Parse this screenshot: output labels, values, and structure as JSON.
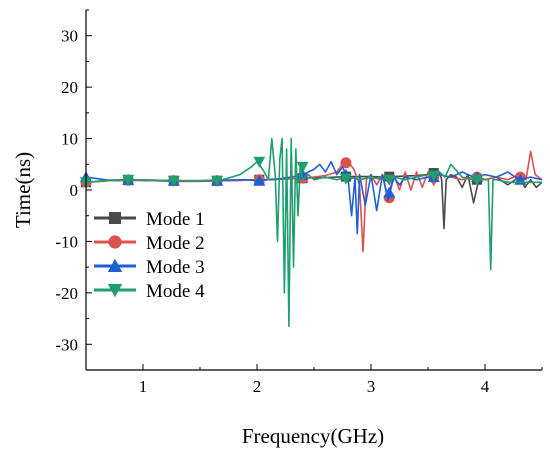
{
  "chart_data": {
    "type": "line",
    "title": "",
    "xlabel": "Frequency(GHz)",
    "ylabel": "Time(ns)",
    "xlim": [
      0.5,
      4.5
    ],
    "ylim": [
      -35,
      35
    ],
    "xticks": [
      1,
      2,
      3,
      4
    ],
    "yticks": [
      -30,
      -20,
      -10,
      0,
      10,
      20,
      30
    ],
    "grid": false,
    "legend_position": "bottom-left",
    "series": [
      {
        "name": "Mode 1",
        "color": "#4a4a4a",
        "marker": "square",
        "x": [
          0.5,
          0.7,
          0.9,
          1.1,
          1.3,
          1.5,
          1.7,
          1.9,
          2.0,
          2.1,
          2.2,
          2.3,
          2.4,
          2.5,
          2.6,
          2.7,
          2.8,
          2.9,
          3.0,
          3.1,
          3.2,
          3.3,
          3.4,
          3.5,
          3.55,
          3.6,
          3.62,
          3.64,
          3.66,
          3.7,
          3.75,
          3.8,
          3.85,
          3.9,
          3.95,
          4.0,
          4.1,
          4.2,
          4.3,
          4.35,
          4.4,
          4.45,
          4.5
        ],
        "y": [
          1.5,
          1.8,
          1.9,
          1.8,
          1.7,
          1.7,
          1.8,
          1.9,
          2.0,
          2.0,
          2.1,
          2.2,
          2.3,
          2.4,
          2.4,
          2.5,
          2.6,
          2.6,
          2.6,
          2.5,
          2.6,
          2.7,
          2.8,
          3.0,
          3.2,
          3.5,
          2.0,
          -7.5,
          2.0,
          3.0,
          2.5,
          0.5,
          3.0,
          -2.5,
          2.5,
          2.0,
          2.5,
          1.0,
          2.5,
          0.5,
          2.0,
          0.5,
          1.5
        ],
        "marker_x": [
          0.5,
          0.87,
          1.27,
          1.65,
          2.02,
          2.4,
          2.78,
          3.16,
          3.55,
          3.93
        ],
        "marker_y": [
          1.5,
          1.9,
          1.8,
          1.8,
          2.0,
          2.3,
          2.6,
          2.6,
          3.3,
          2.0
        ]
      },
      {
        "name": "Mode 2",
        "color": "#d9534f",
        "marker": "circle",
        "x": [
          0.5,
          0.7,
          0.9,
          1.1,
          1.3,
          1.5,
          1.7,
          1.9,
          2.0,
          2.1,
          2.2,
          2.3,
          2.4,
          2.5,
          2.6,
          2.7,
          2.75,
          2.8,
          2.85,
          2.9,
          2.93,
          2.96,
          3.0,
          3.05,
          3.1,
          3.15,
          3.2,
          3.25,
          3.3,
          3.35,
          3.4,
          3.45,
          3.5,
          3.55,
          3.6,
          3.7,
          3.8,
          3.9,
          4.0,
          4.1,
          4.2,
          4.3,
          4.36,
          4.4,
          4.44,
          4.5
        ],
        "y": [
          1.5,
          1.8,
          1.9,
          1.8,
          1.7,
          1.7,
          1.8,
          1.9,
          2.0,
          2.0,
          2.1,
          2.2,
          2.3,
          2.5,
          2.8,
          3.5,
          5.0,
          5.5,
          4.0,
          1.0,
          -12.0,
          2.0,
          3.0,
          1.0,
          3.0,
          -1.5,
          3.0,
          0.0,
          3.5,
          0.0,
          3.5,
          0.5,
          3.5,
          1.0,
          3.0,
          2.5,
          2.0,
          2.5,
          2.0,
          2.5,
          2.0,
          3.0,
          2.0,
          7.5,
          3.0,
          2.0
        ],
        "marker_x": [
          0.5,
          0.87,
          1.27,
          1.65,
          2.02,
          2.4,
          2.78,
          3.16,
          3.55,
          3.93,
          4.31
        ],
        "marker_y": [
          1.5,
          1.9,
          1.8,
          1.8,
          2.0,
          2.3,
          5.3,
          -1.5,
          2.5,
          2.5,
          2.5
        ]
      },
      {
        "name": "Mode 3",
        "color": "#1f5fd6",
        "marker": "triangle-up",
        "x": [
          0.5,
          0.7,
          0.9,
          1.1,
          1.3,
          1.5,
          1.7,
          1.9,
          2.0,
          2.1,
          2.2,
          2.3,
          2.4,
          2.5,
          2.55,
          2.6,
          2.65,
          2.7,
          2.75,
          2.8,
          2.83,
          2.86,
          2.88,
          2.9,
          2.95,
          3.0,
          3.05,
          3.1,
          3.15,
          3.2,
          3.25,
          3.3,
          3.4,
          3.5,
          3.6,
          3.7,
          3.8,
          3.9,
          4.0,
          4.1,
          4.2,
          4.3,
          4.4,
          4.5
        ],
        "y": [
          2.5,
          1.9,
          2.0,
          1.9,
          1.8,
          1.8,
          1.9,
          2.0,
          1.8,
          2.0,
          2.2,
          2.5,
          3.0,
          4.0,
          5.0,
          3.5,
          5.5,
          3.0,
          4.5,
          2.0,
          -5.0,
          2.5,
          -8.5,
          3.0,
          -3.0,
          3.0,
          -4.0,
          3.0,
          -2.0,
          2.5,
          1.0,
          2.5,
          2.0,
          2.5,
          3.0,
          2.5,
          3.5,
          2.5,
          3.0,
          2.5,
          3.5,
          2.0,
          2.5,
          2.0
        ],
        "marker_x": [
          0.5,
          0.87,
          1.27,
          1.65,
          2.02,
          2.4,
          2.78,
          3.16,
          3.55,
          3.93,
          4.31
        ],
        "marker_y": [
          2.5,
          2.0,
          1.8,
          1.8,
          1.8,
          3.0,
          3.0,
          -0.5,
          2.5,
          2.5,
          2.0
        ]
      },
      {
        "name": "Mode 4",
        "color": "#1f9e6e",
        "marker": "triangle-down",
        "x": [
          0.5,
          0.7,
          0.9,
          1.1,
          1.3,
          1.5,
          1.7,
          1.85,
          1.95,
          2.0,
          2.05,
          2.1,
          2.13,
          2.16,
          2.18,
          2.2,
          2.22,
          2.24,
          2.26,
          2.28,
          2.3,
          2.32,
          2.34,
          2.36,
          2.38,
          2.4,
          2.45,
          2.5,
          2.6,
          2.7,
          2.8,
          2.9,
          3.0,
          3.1,
          3.2,
          3.3,
          3.4,
          3.5,
          3.6,
          3.65,
          3.7,
          3.8,
          3.9,
          4.0,
          4.03,
          4.05,
          4.07,
          4.1,
          4.2,
          4.3,
          4.4,
          4.5
        ],
        "y": [
          1.5,
          1.9,
          2.0,
          1.9,
          1.8,
          1.8,
          2.0,
          3.0,
          4.5,
          5.5,
          4.0,
          2.0,
          10.0,
          3.0,
          -10.0,
          6.0,
          10.0,
          -20.0,
          8.0,
          -26.5,
          10.0,
          -15.0,
          8.0,
          -5.0,
          5.0,
          2.0,
          3.0,
          2.0,
          2.5,
          2.0,
          2.5,
          2.0,
          2.5,
          2.0,
          2.5,
          2.0,
          2.5,
          3.0,
          3.5,
          2.5,
          5.0,
          2.5,
          2.0,
          2.0,
          2.0,
          -15.5,
          2.0,
          2.0,
          1.5,
          1.5,
          1.5,
          1.5
        ],
        "marker_x": [
          0.5,
          0.87,
          1.27,
          1.65,
          2.02,
          2.4,
          2.78,
          3.16,
          3.55,
          3.93
        ],
        "marker_y": [
          1.5,
          2.0,
          1.8,
          1.8,
          5.5,
          4.5,
          2.2,
          2.0,
          2.8,
          2.0
        ]
      }
    ]
  }
}
